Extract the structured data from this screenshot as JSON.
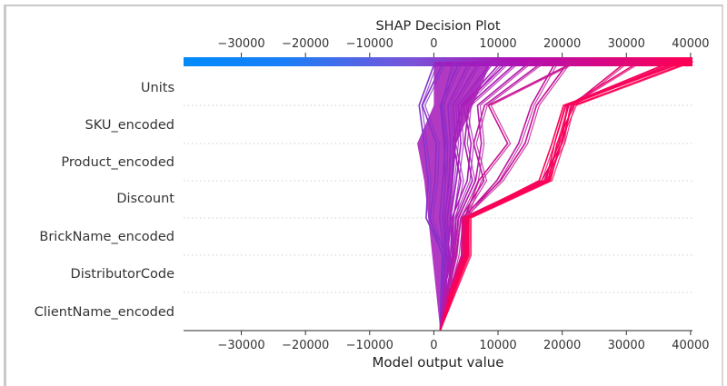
{
  "chart_data": {
    "type": "line",
    "subtype": "shap-decision-plot",
    "title": "SHAP Decision Plot",
    "xlabel": "Model output value",
    "ylabel": "",
    "xlim": [
      -39000,
      40300
    ],
    "xticks": [
      -30000,
      -20000,
      -10000,
      0,
      10000,
      20000,
      30000,
      40000
    ],
    "xtick_labels": [
      "−30000",
      "−20000",
      "−10000",
      "0",
      "10000",
      "20000",
      "30000",
      "40000"
    ],
    "features_top_to_bottom": [
      "Units",
      "SKU_encoded",
      "Product_encoded",
      "Discount",
      "BrickName_encoded",
      "DistributorCode",
      "ClientName_encoded"
    ],
    "base_value": 1000,
    "colormap": {
      "low": "#008bfb",
      "mid": "#a020c0",
      "high": "#ff0052"
    },
    "grid": "dotted horizontal lines between features",
    "series_note": "each trace lists cumulative model output from base (bottom) through ClientName_encoded, DistributorCode, BrickName_encoded, Discount, Product_encoded, SKU_encoded, Units (top)",
    "series": [
      {
        "values": [
          1000,
          1200,
          1500,
          -1200,
          -900,
          -1500,
          -2300,
          200
        ]
      },
      {
        "values": [
          1000,
          1100,
          1300,
          -600,
          200,
          400,
          -1800,
          1500
        ]
      },
      {
        "values": [
          1000,
          1300,
          1600,
          900,
          1400,
          1800,
          1200,
          3000
        ]
      },
      {
        "values": [
          1000,
          1500,
          1800,
          1400,
          1800,
          1600,
          1000,
          4000
        ]
      },
      {
        "values": [
          1000,
          1400,
          2000,
          1700,
          2400,
          2600,
          2200,
          5500
        ]
      },
      {
        "values": [
          1000,
          1600,
          2400,
          2100,
          2800,
          3400,
          3000,
          7000
        ]
      },
      {
        "values": [
          1000,
          1800,
          2200,
          2600,
          3500,
          4200,
          3800,
          9000
        ]
      },
      {
        "values": [
          1000,
          1500,
          2900,
          3000,
          4200,
          3000,
          4400,
          10500
        ]
      },
      {
        "values": [
          1000,
          1700,
          2600,
          2800,
          5200,
          5800,
          4600,
          11500
        ]
      },
      {
        "values": [
          1000,
          2000,
          3000,
          3500,
          6000,
          4800,
          5400,
          13000
        ]
      },
      {
        "values": [
          1000,
          1900,
          3200,
          3800,
          6500,
          7400,
          6800,
          15000
        ]
      },
      {
        "values": [
          1000,
          2100,
          3500,
          4200,
          7800,
          6200,
          7900,
          17000
        ]
      },
      {
        "values": [
          1000,
          2400,
          4600,
          4600,
          9800,
          13200,
          15200,
          19000
        ]
      },
      {
        "values": [
          1000,
          2300,
          4300,
          4400,
          10400,
          14200,
          16000,
          21000
        ]
      },
      {
        "values": [
          1000,
          2200,
          4800,
          4800,
          7000,
          11500,
          8500,
          22000
        ]
      },
      {
        "values": [
          1000,
          2600,
          4400,
          4500,
          16800,
          20000,
          21500,
          30000
        ]
      },
      {
        "values": [
          1000,
          2500,
          4700,
          4700,
          17200,
          19500,
          21000,
          32000
        ]
      },
      {
        "values": [
          1000,
          2800,
          5000,
          5100,
          17500,
          18800,
          20500,
          37000
        ]
      },
      {
        "values": [
          1000,
          2700,
          4900,
          5000,
          16400,
          18400,
          20200,
          39000
        ]
      },
      {
        "values": [
          1000,
          2900,
          5200,
          5300,
          17800,
          19200,
          21800,
          40000
        ]
      },
      {
        "values": [
          1000,
          3000,
          5400,
          5400,
          18000,
          19900,
          20800,
          38000
        ]
      }
    ]
  }
}
